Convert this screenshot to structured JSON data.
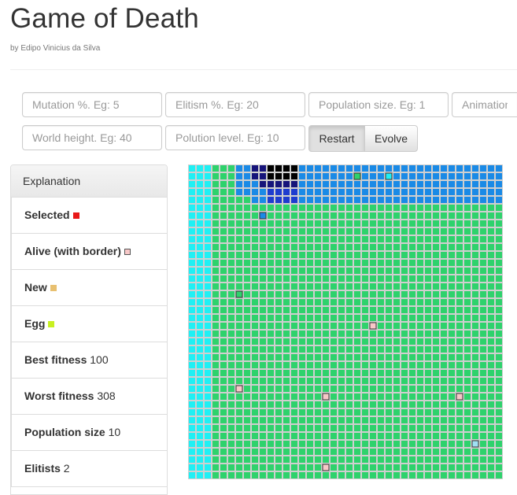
{
  "header": {
    "title": "Game of Death",
    "author": "by Edipo Vinicius da Silva"
  },
  "inputs": {
    "mutation": "Mutation %. Eg: 5",
    "elitism": "Elitism %. Eg: 20",
    "population": "Population size. Eg: 1",
    "animation": "Animation speed",
    "height": "World height. Eg: 40",
    "polution": "Polution level. Eg: 10"
  },
  "buttons": {
    "restart": "Restart",
    "evolve": "Evolve"
  },
  "explanation": {
    "heading": "Explanation",
    "selected": {
      "label": "Selected",
      "color": "#e81818"
    },
    "alive": {
      "label": "Alive (with border)",
      "color": "#f8c8c8"
    },
    "new": {
      "label": "New",
      "color": "#e8c070"
    },
    "egg": {
      "label": "Egg",
      "color": "#c8f020"
    },
    "best_fitness": {
      "label": "Best fitness",
      "value": "100"
    },
    "worst_fitness": {
      "label": "Worst fitness",
      "value": "308"
    },
    "population_size": {
      "label": "Population size",
      "value": "10"
    },
    "elitists": {
      "label": "Elitists",
      "value": "2"
    }
  },
  "world": {
    "cols": 40,
    "rows": 40,
    "palette": {
      ".": "#ffffff",
      "l": "#9fe0f4",
      "c": "#1ff0f4",
      "g": "#2ed26c",
      "m": "#1a8ae6",
      "b": "#1e3ccf",
      "n": "#16147a",
      "k": "#000000"
    },
    "rows_data": [
      "cccgggmmnnkkkkmmmmmmmmmmmmmmmmmmmmmmmmmm",
      "cccgggmmnnkkkkmmmmmmmmmmmmmmmmmmmmmmmmmm",
      "cccgggmmmnnnnnmmmmmmmmmmmmmmmmmmmmmmmmmm",
      "cccgggmmmmbbbbmmmmmmmmmmmmmmmmmmmmmmmmmm",
      "cccgggggmmbbbbmmmmmmmmmmmmmmmmmmmmmmmmmm",
      "cccggggggggggggggggggggggggggggggggggggg",
      "cccggggggggggggggggggggggggggggggggggggg",
      "cccggggggggggggggggggggggggggggggggggggg",
      "cccggggggggggggggggggggggggggggggggggggg",
      "cccggggggggggggggggggggggggggggggggggggg",
      "cccggggggggggggggggggggggggggggggggggggg",
      "cccggggggggggggggggggggggggggggggggggggg",
      "cccggggggggggggggggggggggggggggggggggggg",
      "cccggggggggggggggggggggggggggggggggggggg",
      "cccggggggggggggggggggggggggggggggggggggg",
      "cccggggggggggggggggggggggggggggggggggggg",
      "cccggggggggggggggggggggggggggggggggggggg",
      "cccggggggggggggggggggggggggggggggggggggg",
      "cccggggggggggggggggggggggggggggggggggggg",
      "cccggggggggggggggggggggggggggggggggggggg",
      "cccggggggggggggggggggggggggggggggggggggg",
      "cccggggggggggggggggggggggggggggggggggggg",
      "cccggggggggggggggggggggggggggggggggggggg",
      "cccggggggggggggggggggggggggggggggggggggg",
      "cccggggggggggggggggggggggggggggggggggggg",
      "cccggggggggggggggggggggggggggggggggggggg",
      "cccggggggggggggggggggggggggggggggggggggg",
      "cccggggggggggggggggggggggggggggggggggggg",
      "cccggggggggggggggggggggggggggggggggggggg",
      "cccggggggggggggggggggggggggggggggggggggg",
      "cccggggggggggggggggggggggggggggggggggggg",
      "cccggggggggggggggggggggggggggggggggggggg",
      "cccggggggggggggggggggggggggggggggggggggg",
      "cccggggggggggggggggggggggggggggggggggggg",
      "cccggggggggggggggggggggggggggggggggggggg",
      "cccggggggggggggggggggggggggggggggggggggg",
      "cccggggggggggggggggggggggggggggggggggggg",
      "cccggggggggggggggggggggggggggggggggggggg",
      "cccggggggggggggggggggggggggggggggggggggg",
      "cccggggggggggggggggggggggggggggggggggggg"
    ],
    "alive_cells": [
      [
        21,
        1,
        "g"
      ],
      [
        25,
        1,
        "c"
      ],
      [
        9,
        6,
        "m"
      ],
      [
        6,
        16,
        "g"
      ],
      [
        23,
        20,
        "p"
      ],
      [
        6,
        28,
        "p"
      ],
      [
        17,
        29,
        "p"
      ],
      [
        34,
        29,
        "p"
      ],
      [
        36,
        35,
        "l"
      ],
      [
        17,
        38,
        "p"
      ]
    ]
  }
}
